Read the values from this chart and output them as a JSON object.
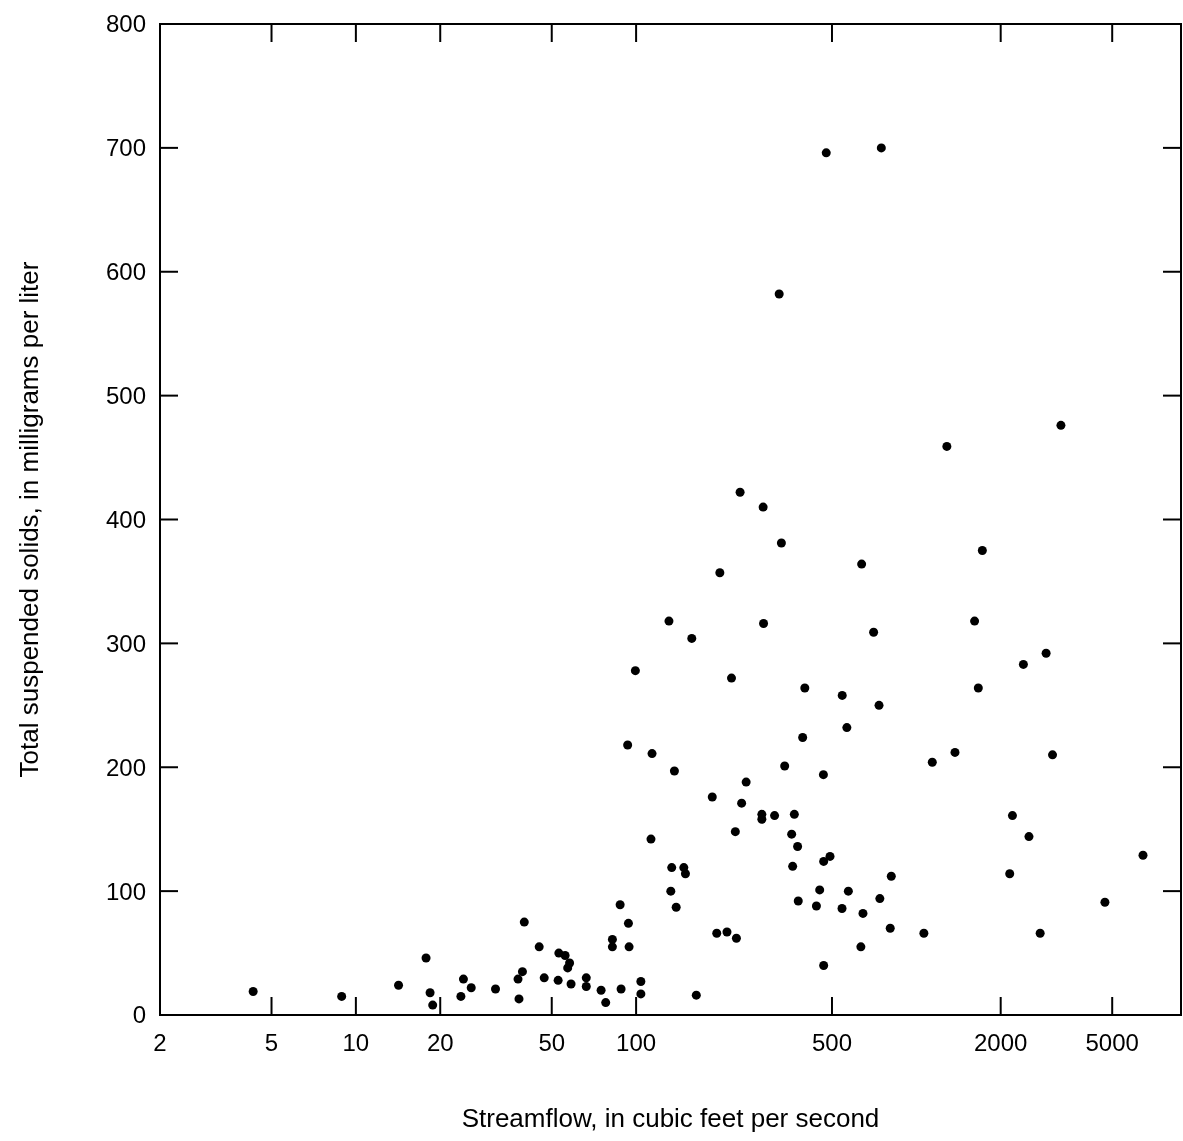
{
  "chart_data": {
    "type": "scatter",
    "xlabel": "Streamflow, in cubic feet per second",
    "ylabel": "Total suspended solids, in milligrams per liter",
    "log": "x",
    "xlim": [
      2,
      8800
    ],
    "xticks": [
      2,
      5,
      10,
      20,
      50,
      100,
      500,
      2000,
      5000
    ],
    "ylim": [
      0,
      800
    ],
    "yticks": [
      0,
      100,
      200,
      300,
      400,
      500,
      600,
      700,
      800
    ],
    "grid": false,
    "marker": "circle",
    "series": [
      {
        "color": "#000000",
        "x": [
          4.3,
          8.9,
          14.2,
          17.8,
          18.4,
          18.8,
          23.7,
          24.2,
          25.8,
          31.5,
          37.9,
          39.3,
          38.2,
          39.9,
          45.1,
          47.0,
          52.7,
          53.0,
          55.8,
          57.9,
          57.0,
          58.6,
          66.4,
          66.4,
          75.0,
          77.9,
          82.3,
          82.3,
          87.7,
          88.4,
          93.9,
          94.4,
          104,
          104,
          113,
          164,
          134,
          148,
          150,
          133,
          139,
          238,
          281,
          281,
          312,
          367,
          226,
          359,
          377,
          362,
          379,
          467,
          492,
          452,
          440,
          467,
          572,
          543,
          634,
          645,
          741,
          814,
          807,
          1064,
          194,
          211,
          228,
          235,
          284,
          330,
          638,
          199,
          131,
          285,
          704,
          158,
          99.4,
          219,
          400,
          544,
          736,
          565,
          393,
          93.3,
          114,
          137,
          1140,
          339,
          466,
          247,
          187,
          3281,
          1285,
          1720,
          1614,
          2905,
          2410,
          1664,
          1374,
          3062,
          2203,
          2523,
          6440,
          2154,
          4710,
          2766,
          477,
          750,
          324
        ],
        "values": [
          19,
          15,
          24,
          46,
          18,
          8,
          15,
          29,
          22,
          21,
          29,
          35,
          13,
          75,
          55,
          30,
          28,
          50,
          48,
          42,
          38,
          25,
          30,
          23,
          20,
          10,
          61,
          55,
          89,
          21,
          74,
          55,
          27,
          17,
          142,
          16,
          119,
          119,
          114,
          100,
          87,
          171,
          162,
          158,
          161,
          162,
          148,
          146,
          136,
          120,
          92,
          124,
          128,
          101,
          88,
          40,
          100,
          86,
          55,
          82,
          94,
          112,
          70,
          66,
          66,
          67,
          62,
          422,
          410,
          381,
          364,
          357,
          318,
          316,
          309,
          304,
          278,
          272,
          264,
          258,
          250,
          232,
          224,
          218,
          211,
          197,
          204,
          201,
          194,
          188,
          176,
          476,
          459,
          375,
          318,
          292,
          283,
          264,
          212,
          210,
          161,
          144,
          129,
          114,
          91,
          66,
          696,
          700,
          582
        ]
      }
    ]
  }
}
